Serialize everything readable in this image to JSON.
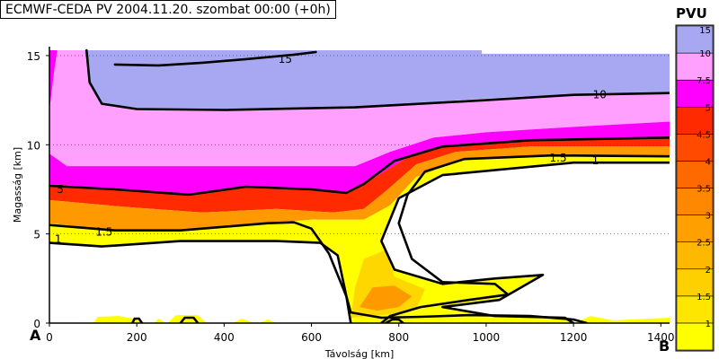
{
  "title": "ECMWF-CEDA PV  2004.11.20. szombat 00:00 (+0h)",
  "corner_left": "A",
  "corner_right": "B",
  "colors": {
    "white": "#ffffff",
    "yellow": "#ffff00",
    "gold": "#ffd700",
    "orange": "#ff9900",
    "darkorange": "#ff6a00",
    "red": "#ff2a00",
    "magenta": "#ff00ff",
    "pink": "#ffa0ff",
    "lavender": "#a8a8f2",
    "contour": "#000000"
  },
  "chart_data": {
    "type": "heatmap",
    "title": "ECMWF-CEDA PV  2004.11.20. szombat 00:00 (+0h)",
    "xlabel": "Távolság [km]",
    "ylabel": "Magasság [km]",
    "xlim": [
      0,
      1420
    ],
    "ylim": [
      0,
      15.5
    ],
    "x_ticks": [
      "0",
      "200",
      "400",
      "600",
      "800",
      "1000",
      "1200",
      "1400"
    ],
    "y_ticks": [
      "0",
      "5",
      "10",
      "15"
    ],
    "grid": "dotted horizontal",
    "colorbar": {
      "title": "PVU",
      "levels": [
        "1",
        "1.5",
        "2",
        "2.5",
        "3",
        "3.5",
        "4",
        "4.5",
        "5",
        "7.5",
        "10",
        "15"
      ],
      "colors": [
        "#ffff00",
        "#ffe600",
        "#ffd000",
        "#ffb800",
        "#ffa000",
        "#ff8800",
        "#ff6a00",
        "#ff4a00",
        "#ff2a00",
        "#ff00ff",
        "#ffa0ff",
        "#a8a8f2"
      ]
    },
    "contour_labels": [
      {
        "text": "15",
        "x": 540,
        "y": 14.8
      },
      {
        "text": "10",
        "x": 1260,
        "y": 12.8
      },
      {
        "text": "5",
        "x": 25,
        "y": 7.5
      },
      {
        "text": "1.5",
        "x": 125,
        "y": 5.1
      },
      {
        "text": "1.5",
        "x": 1165,
        "y": 9.25
      },
      {
        "text": "1",
        "x": 20,
        "y": 4.7
      },
      {
        "text": "1",
        "x": 1250,
        "y": 9.1
      }
    ],
    "regions": [
      {
        "color": "lavender",
        "pts": [
          [
            80,
            15.3
          ],
          [
            990,
            15.3
          ],
          [
            990,
            15.1
          ],
          [
            1420,
            15.1
          ],
          [
            1420,
            12.9
          ],
          [
            1260,
            12.9
          ],
          [
            1000,
            12.6
          ],
          [
            700,
            12.1
          ],
          [
            400,
            11.95
          ],
          [
            200,
            12.0
          ],
          [
            120,
            12.3
          ],
          [
            92,
            13.5
          ],
          [
            80,
            15.3
          ]
        ]
      },
      {
        "color": "pink",
        "pts": [
          [
            0,
            11.8
          ],
          [
            8,
            13.6
          ],
          [
            18,
            15.3
          ],
          [
            80,
            15.3
          ],
          [
            92,
            13.5
          ],
          [
            120,
            12.3
          ],
          [
            200,
            12.0
          ],
          [
            400,
            11.95
          ],
          [
            700,
            12.1
          ],
          [
            1000,
            12.6
          ],
          [
            1260,
            12.9
          ],
          [
            1420,
            12.9
          ],
          [
            1420,
            11.3
          ],
          [
            1200,
            11.0
          ],
          [
            1000,
            10.7
          ],
          [
            880,
            10.4
          ],
          [
            780,
            9.6
          ],
          [
            700,
            8.8
          ],
          [
            40,
            8.8
          ],
          [
            0,
            9.5
          ]
        ]
      },
      {
        "color": "magenta",
        "pts": [
          [
            0,
            9.5
          ],
          [
            40,
            8.8
          ],
          [
            700,
            8.8
          ],
          [
            780,
            9.6
          ],
          [
            880,
            10.4
          ],
          [
            1000,
            10.7
          ],
          [
            1200,
            11.0
          ],
          [
            1420,
            11.3
          ],
          [
            1420,
            10.35
          ],
          [
            1100,
            10.3
          ],
          [
            920,
            10.0
          ],
          [
            820,
            9.3
          ],
          [
            720,
            7.8
          ],
          [
            680,
            7.3
          ],
          [
            600,
            7.5
          ],
          [
            450,
            7.7
          ],
          [
            320,
            7.2
          ],
          [
            150,
            7.5
          ],
          [
            0,
            7.8
          ]
        ]
      },
      {
        "color": "red",
        "pts": [
          [
            0,
            7.8
          ],
          [
            150,
            7.5
          ],
          [
            320,
            7.2
          ],
          [
            450,
            7.7
          ],
          [
            600,
            7.5
          ],
          [
            680,
            7.3
          ],
          [
            720,
            7.8
          ],
          [
            820,
            9.3
          ],
          [
            920,
            10.0
          ],
          [
            1100,
            10.3
          ],
          [
            1420,
            10.35
          ],
          [
            1420,
            9.9
          ],
          [
            1100,
            9.9
          ],
          [
            930,
            9.6
          ],
          [
            840,
            8.9
          ],
          [
            770,
            7.4
          ],
          [
            720,
            6.4
          ],
          [
            650,
            6.2
          ],
          [
            520,
            6.4
          ],
          [
            350,
            6.2
          ],
          [
            180,
            6.5
          ],
          [
            0,
            6.9
          ]
        ]
      },
      {
        "color": "orange",
        "pts": [
          [
            0,
            6.9
          ],
          [
            180,
            6.5
          ],
          [
            350,
            6.2
          ],
          [
            520,
            6.4
          ],
          [
            650,
            6.2
          ],
          [
            720,
            6.4
          ],
          [
            770,
            7.4
          ],
          [
            840,
            8.9
          ],
          [
            930,
            9.6
          ],
          [
            1100,
            9.9
          ],
          [
            1420,
            9.9
          ],
          [
            1420,
            9.4
          ],
          [
            1150,
            9.45
          ],
          [
            950,
            9.2
          ],
          [
            840,
            8.2
          ],
          [
            780,
            6.6
          ],
          [
            720,
            5.8
          ],
          [
            600,
            5.8
          ],
          [
            500,
            5.6
          ],
          [
            300,
            5.2
          ],
          [
            150,
            5.2
          ],
          [
            0,
            5.6
          ]
        ]
      },
      {
        "color": "yellow",
        "pts": [
          [
            0,
            5.6
          ],
          [
            150,
            5.2
          ],
          [
            300,
            5.2
          ],
          [
            500,
            5.6
          ],
          [
            600,
            5.8
          ],
          [
            720,
            5.8
          ],
          [
            780,
            6.6
          ],
          [
            840,
            8.2
          ],
          [
            950,
            9.2
          ],
          [
            1150,
            9.45
          ],
          [
            1420,
            9.4
          ],
          [
            1420,
            9.0
          ],
          [
            1200,
            9.0
          ],
          [
            900,
            8.3
          ],
          [
            800,
            7.0
          ],
          [
            760,
            4.6
          ],
          [
            790,
            3.0
          ],
          [
            900,
            2.2
          ],
          [
            1020,
            2.5
          ],
          [
            1130,
            2.7
          ],
          [
            1030,
            1.3
          ],
          [
            900,
            0.9
          ],
          [
            1020,
            0.4
          ],
          [
            1180,
            0.3
          ],
          [
            1200,
            0.0
          ],
          [
            690,
            0.0
          ],
          [
            680,
            1.5
          ],
          [
            660,
            3.8
          ],
          [
            620,
            4.5
          ],
          [
            520,
            4.6
          ],
          [
            300,
            4.6
          ],
          [
            120,
            4.3
          ],
          [
            0,
            4.5
          ]
        ]
      },
      {
        "color": "gold",
        "pts": [
          [
            690,
            0.3
          ],
          [
            700,
            2.0
          ],
          [
            720,
            3.6
          ],
          [
            770,
            4.1
          ],
          [
            790,
            2.6
          ],
          [
            860,
            1.9
          ],
          [
            840,
            0.8
          ],
          [
            780,
            0.5
          ],
          [
            690,
            0.3
          ]
        ]
      },
      {
        "color": "orange",
        "pts": [
          [
            710,
            0.9
          ],
          [
            740,
            2.0
          ],
          [
            790,
            2.1
          ],
          [
            830,
            1.5
          ],
          [
            800,
            0.9
          ],
          [
            750,
            0.7
          ],
          [
            710,
            0.9
          ]
        ]
      },
      {
        "color": "white",
        "pts": [
          [
            800,
            7.0
          ],
          [
            900,
            8.3
          ],
          [
            1200,
            9.0
          ],
          [
            1420,
            9.0
          ],
          [
            1420,
            0.45
          ],
          [
            1300,
            0.45
          ],
          [
            1180,
            0.3
          ],
          [
            1020,
            0.4
          ],
          [
            900,
            0.9
          ],
          [
            1030,
            1.3
          ],
          [
            1130,
            2.7
          ],
          [
            1020,
            2.5
          ],
          [
            900,
            2.2
          ],
          [
            790,
            3.0
          ],
          [
            760,
            4.6
          ],
          [
            800,
            7.0
          ]
        ]
      },
      {
        "color": "magenta",
        "pts": [
          [
            0,
            11.9
          ],
          [
            10,
            14.0
          ],
          [
            18,
            15.3
          ],
          [
            0,
            15.3
          ]
        ]
      },
      {
        "color": "yellow",
        "pts": [
          [
            1200,
            0
          ],
          [
            1240,
            0.4
          ],
          [
            1290,
            0.15
          ],
          [
            1420,
            0.3
          ],
          [
            1420,
            0
          ]
        ]
      },
      {
        "color": "yellow",
        "pts": [
          [
            100,
            0
          ],
          [
            110,
            0.35
          ],
          [
            160,
            0.4
          ],
          [
            200,
            0.2
          ],
          [
            210,
            0
          ],
          [
            240,
            0
          ],
          [
            250,
            0.25
          ],
          [
            265,
            0
          ]
        ]
      },
      {
        "color": "yellow",
        "pts": [
          [
            270,
            0
          ],
          [
            290,
            0.45
          ],
          [
            340,
            0.45
          ],
          [
            360,
            0
          ],
          [
            420,
            0
          ],
          [
            440,
            0.25
          ],
          [
            470,
            0
          ],
          [
            480,
            0
          ],
          [
            500,
            0.2
          ],
          [
            520,
            0
          ]
        ]
      }
    ],
    "contours": [
      {
        "level": "15",
        "pts": [
          [
            150,
            14.5
          ],
          [
            250,
            14.45
          ],
          [
            350,
            14.6
          ],
          [
            450,
            14.8
          ],
          [
            560,
            15.05
          ],
          [
            610,
            15.2
          ]
        ]
      },
      {
        "level": "10",
        "pts": [
          [
            85,
            15.3
          ],
          [
            92,
            13.5
          ],
          [
            120,
            12.3
          ],
          [
            200,
            12.0
          ],
          [
            400,
            11.95
          ],
          [
            700,
            12.1
          ],
          [
            1000,
            12.5
          ],
          [
            1200,
            12.8
          ],
          [
            1420,
            12.9
          ]
        ]
      },
      {
        "level": "5",
        "pts": [
          [
            0,
            7.7
          ],
          [
            150,
            7.5
          ],
          [
            320,
            7.2
          ],
          [
            450,
            7.65
          ],
          [
            600,
            7.5
          ],
          [
            680,
            7.3
          ],
          [
            720,
            7.8
          ],
          [
            790,
            9.1
          ],
          [
            900,
            9.9
          ],
          [
            1100,
            10.25
          ],
          [
            1420,
            10.4
          ]
        ]
      },
      {
        "level": "1.5",
        "pts": [
          [
            0,
            5.5
          ],
          [
            150,
            5.2
          ],
          [
            300,
            5.2
          ],
          [
            500,
            5.6
          ],
          [
            560,
            5.65
          ],
          [
            600,
            5.3
          ],
          [
            640,
            3.9
          ],
          [
            680,
            1.5
          ],
          [
            690,
            0.6
          ],
          [
            760,
            0.3
          ],
          [
            850,
            0.35
          ],
          [
            960,
            0.45
          ],
          [
            1100,
            0.4
          ],
          [
            1200,
            0.2
          ],
          [
            1230,
            0.0
          ]
        ]
      },
      {
        "level": "1.5",
        "pts": [
          [
            1420,
            9.35
          ],
          [
            1150,
            9.4
          ],
          [
            950,
            9.2
          ],
          [
            860,
            8.5
          ],
          [
            820,
            7.2
          ],
          [
            800,
            5.6
          ],
          [
            830,
            3.6
          ],
          [
            900,
            2.3
          ],
          [
            1020,
            2.2
          ],
          [
            1050,
            1.6
          ],
          [
            960,
            1.3
          ],
          [
            850,
            0.9
          ],
          [
            780,
            0.4
          ],
          [
            760,
            0.0
          ]
        ]
      },
      {
        "level": "1",
        "pts": [
          [
            0,
            4.5
          ],
          [
            120,
            4.3
          ],
          [
            300,
            4.6
          ],
          [
            520,
            4.6
          ],
          [
            620,
            4.5
          ],
          [
            660,
            3.8
          ],
          [
            680,
            1.5
          ],
          [
            690,
            0.0
          ]
        ]
      },
      {
        "level": "1",
        "pts": [
          [
            1420,
            9.0
          ],
          [
            1200,
            9.0
          ],
          [
            900,
            8.3
          ],
          [
            800,
            7.0
          ],
          [
            760,
            4.6
          ],
          [
            790,
            3.0
          ],
          [
            900,
            2.2
          ],
          [
            1020,
            2.5
          ],
          [
            1130,
            2.7
          ],
          [
            1030,
            1.3
          ],
          [
            900,
            0.9
          ],
          [
            1020,
            0.4
          ],
          [
            1180,
            0.3
          ],
          [
            1200,
            0.0
          ]
        ]
      },
      {
        "level": "bottom",
        "pts": [
          [
            190,
            0
          ],
          [
            195,
            0.25
          ],
          [
            205,
            0.25
          ],
          [
            212,
            0
          ]
        ]
      },
      {
        "level": "bottom",
        "pts": [
          [
            300,
            0
          ],
          [
            310,
            0.3
          ],
          [
            330,
            0.3
          ],
          [
            340,
            0
          ]
        ]
      },
      {
        "level": "bottom",
        "pts": [
          [
            770,
            0
          ],
          [
            785,
            0.2
          ],
          [
            800,
            0.2
          ],
          [
            810,
            0
          ]
        ]
      }
    ]
  }
}
